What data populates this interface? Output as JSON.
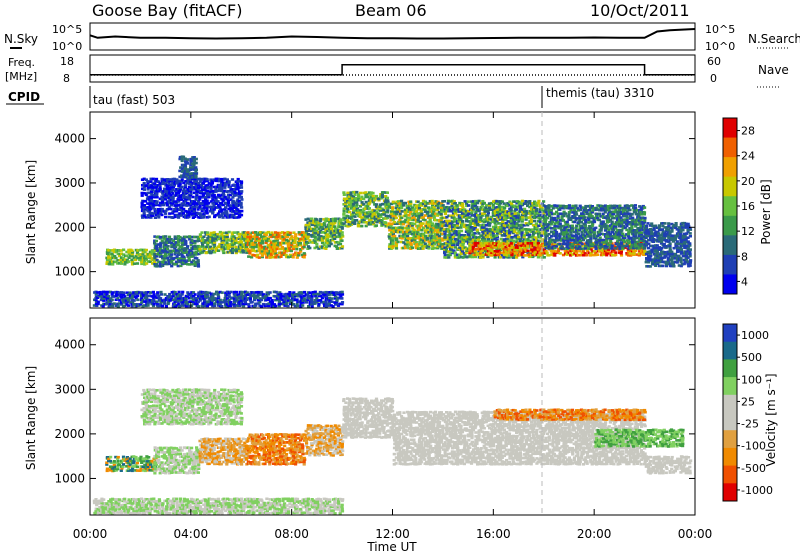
{
  "header": {
    "station": "Goose Bay (fitACF)",
    "beam": "Beam 06",
    "date": "10/Oct/2011"
  },
  "left_labels": {
    "nsky": "N.Sky",
    "freq": "Freq.",
    "freq_unit": "[MHz]",
    "cpid": "CPID"
  },
  "right_labels": {
    "nsearch": "N.Search",
    "nave": "Nave"
  },
  "cpid_segments": [
    {
      "label": "tau (fast) 503",
      "start_hour": 0
    },
    {
      "label": "themis (tau) 3310",
      "start_hour": 18
    }
  ],
  "chart_data": [
    {
      "type": "line",
      "name": "noise",
      "left_ticks": [
        "10^5",
        "10^0"
      ],
      "right_ticks": [
        "10^5",
        "10^0"
      ],
      "x_hours": [
        0,
        0.3,
        1,
        2,
        3,
        4,
        5,
        6,
        7,
        8,
        9,
        10,
        11,
        12,
        13,
        14,
        15,
        16,
        17,
        18,
        19,
        20,
        21,
        22,
        22.5,
        23,
        24
      ],
      "y_frac": [
        0.45,
        0.55,
        0.5,
        0.55,
        0.55,
        0.57,
        0.58,
        0.57,
        0.55,
        0.5,
        0.52,
        0.55,
        0.57,
        0.57,
        0.58,
        0.58,
        0.57,
        0.56,
        0.55,
        0.55,
        0.55,
        0.54,
        0.55,
        0.55,
        0.3,
        0.25,
        0.2
      ]
    },
    {
      "type": "line",
      "name": "frequency",
      "left_ticks": [
        "18",
        "8"
      ],
      "right_ticks": [
        "60",
        "0"
      ],
      "freq_segments": [
        {
          "x0": 0,
          "x1": 10,
          "value": 10.5
        },
        {
          "x0": 10,
          "x1": 22,
          "value": 14.5
        },
        {
          "x0": 22,
          "x1": 24,
          "value": 10.5
        }
      ],
      "ylim": [
        8,
        18
      ]
    },
    {
      "type": "heatmap",
      "name": "power",
      "ylabel": "Slant Range [km]",
      "yticks": [
        1000,
        2000,
        3000,
        4000
      ],
      "ylim": [
        180,
        4600
      ],
      "xlim": [
        0,
        24
      ],
      "colorbar_label": "Power [dB]",
      "colorbar_ticks": [
        "28",
        "24",
        "20",
        "16",
        "12",
        "8",
        "4"
      ],
      "colors": [
        "#0000ee",
        "#1f3fb4",
        "#2a6a78",
        "#3a9a4a",
        "#66c040",
        "#c8c800",
        "#f0a000",
        "#f06000",
        "#e00000"
      ],
      "blobs": [
        {
          "x0": 0.6,
          "x1": 2.6,
          "r0": 1150,
          "r1": 1500,
          "c": [
            3,
            4,
            5
          ]
        },
        {
          "x0": 2.5,
          "x1": 4.3,
          "r0": 1100,
          "r1": 1800,
          "c": [
            1,
            2,
            3
          ]
        },
        {
          "x0": 4.3,
          "x1": 6.2,
          "r0": 1400,
          "r1": 1900,
          "c": [
            2,
            3,
            4,
            5
          ]
        },
        {
          "x0": 6.2,
          "x1": 8.5,
          "r0": 1300,
          "r1": 1900,
          "c": [
            3,
            5,
            6,
            7
          ]
        },
        {
          "x0": 8.5,
          "x1": 10.0,
          "r0": 1500,
          "r1": 2200,
          "c": [
            2,
            3,
            4,
            5
          ]
        },
        {
          "x0": 10.0,
          "x1": 11.8,
          "r0": 2000,
          "r1": 2800,
          "c": [
            2,
            3,
            4,
            5
          ]
        },
        {
          "x0": 11.8,
          "x1": 14.0,
          "r0": 1500,
          "r1": 2600,
          "c": [
            2,
            3,
            4,
            5,
            6
          ]
        },
        {
          "x0": 14.0,
          "x1": 18.0,
          "r0": 1300,
          "r1": 2600,
          "c": [
            1,
            2,
            3,
            4,
            5
          ]
        },
        {
          "x0": 15.0,
          "x1": 22.0,
          "r0": 1350,
          "r1": 1650,
          "c": [
            5,
            6,
            7,
            8
          ]
        },
        {
          "x0": 18.0,
          "x1": 22.0,
          "r0": 1500,
          "r1": 2500,
          "c": [
            1,
            2,
            3
          ]
        },
        {
          "x0": 22.0,
          "x1": 23.8,
          "r0": 1100,
          "r1": 2100,
          "c": [
            1,
            2
          ]
        },
        {
          "x0": 2.0,
          "x1": 6.0,
          "r0": 2200,
          "r1": 3100,
          "c": [
            0,
            1
          ]
        },
        {
          "x0": 0.1,
          "x1": 10.0,
          "r0": 200,
          "r1": 550,
          "c": [
            0,
            1,
            2
          ]
        },
        {
          "x0": 3.5,
          "x1": 4.2,
          "r0": 3100,
          "r1": 3600,
          "c": [
            1,
            2
          ]
        }
      ]
    },
    {
      "type": "heatmap",
      "name": "velocity",
      "ylabel": "Slant Range [km]",
      "yticks": [
        1000,
        2000,
        3000,
        4000
      ],
      "ylim": [
        180,
        4600
      ],
      "xlim": [
        0,
        24
      ],
      "xticks": [
        "00:00",
        "04:00",
        "08:00",
        "12:00",
        "16:00",
        "20:00",
        "00:00"
      ],
      "xlabel": "Time UT",
      "colorbar_label": "Velocity [m s⁻¹]",
      "colorbar_ticks": [
        "1000",
        "500",
        "100",
        "25",
        "-25",
        "-100",
        "-500",
        "-1000"
      ],
      "colors": [
        "#e00000",
        "#f05000",
        "#f08a00",
        "#e0a040",
        "#c8c8c0",
        "#c8c8c0",
        "#80d060",
        "#40a040",
        "#1a6a8a",
        "#2040c0"
      ],
      "blobs": [
        {
          "x0": 0.6,
          "x1": 2.6,
          "r0": 1150,
          "r1": 1500,
          "c": [
            6,
            7,
            8,
            2
          ]
        },
        {
          "x0": 2.5,
          "x1": 4.3,
          "r0": 1100,
          "r1": 1700,
          "c": [
            4,
            6
          ]
        },
        {
          "x0": 4.3,
          "x1": 6.2,
          "r0": 1300,
          "r1": 1900,
          "c": [
            2,
            3,
            4
          ]
        },
        {
          "x0": 6.2,
          "x1": 8.5,
          "r0": 1300,
          "r1": 2000,
          "c": [
            1,
            2,
            3
          ]
        },
        {
          "x0": 8.5,
          "x1": 10.0,
          "r0": 1500,
          "r1": 2200,
          "c": [
            2,
            3,
            4
          ]
        },
        {
          "x0": 10.0,
          "x1": 12.0,
          "r0": 1900,
          "r1": 2800,
          "c": [
            4,
            5
          ]
        },
        {
          "x0": 12.0,
          "x1": 22.0,
          "r0": 1300,
          "r1": 2500,
          "c": [
            4,
            5
          ]
        },
        {
          "x0": 16.0,
          "x1": 22.0,
          "r0": 2300,
          "r1": 2550,
          "c": [
            1,
            2,
            3
          ]
        },
        {
          "x0": 20.0,
          "x1": 23.5,
          "r0": 1700,
          "r1": 2100,
          "c": [
            6,
            7
          ]
        },
        {
          "x0": 22.0,
          "x1": 23.8,
          "r0": 1100,
          "r1": 1500,
          "c": [
            4,
            5
          ]
        },
        {
          "x0": 0.1,
          "x1": 10.0,
          "r0": 200,
          "r1": 550,
          "c": [
            4,
            6
          ]
        },
        {
          "x0": 2.0,
          "x1": 6.0,
          "r0": 2200,
          "r1": 3000,
          "c": [
            4,
            6
          ]
        }
      ]
    }
  ]
}
